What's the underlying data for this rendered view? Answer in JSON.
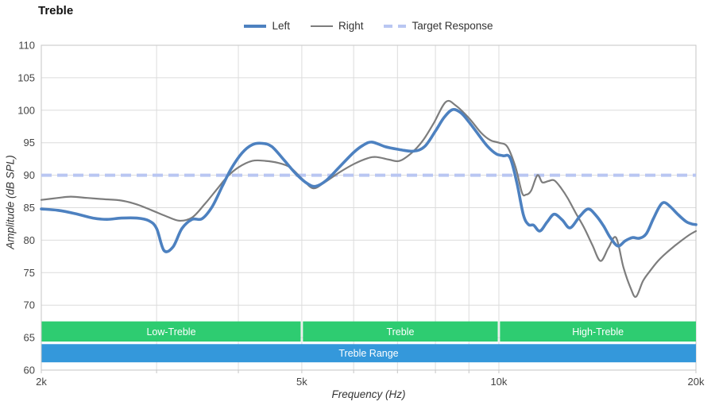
{
  "title": "Treble",
  "colors": {
    "grid": "#dcdcdc",
    "frame": "#c6c6c6",
    "tick_text": "#444444",
    "title_text": "#111111",
    "left_line": "#4d81c0",
    "right_line": "#7d7d7d",
    "target_line": "#b9c6f2",
    "section_band": "#2ecc71",
    "range_band": "#3498db",
    "band_text": "#ffffff"
  },
  "legend": [
    {
      "label": "Left",
      "color": "#4d81c0",
      "style": "solid",
      "thickness": 4
    },
    {
      "label": "Right",
      "color": "#7d7d7d",
      "style": "solid",
      "thickness": 2
    },
    {
      "label": "Target Response",
      "color": "#b9c6f2",
      "style": "dashed",
      "thickness": 4
    }
  ],
  "chart_data": {
    "type": "line",
    "title": "Treble",
    "xlabel": "Frequency (Hz)",
    "ylabel": "Amplitude (dB SPL)",
    "x_scale": "log",
    "xlim": [
      2000,
      20000
    ],
    "ylim": [
      60,
      110
    ],
    "grid": true,
    "legend_position": "top",
    "y_ticks": [
      60,
      65,
      70,
      75,
      80,
      85,
      90,
      95,
      100,
      105,
      110
    ],
    "x_ticks": [
      {
        "f": 2000,
        "label": "2k"
      },
      {
        "f": 5000,
        "label": "5k"
      },
      {
        "f": 10000,
        "label": "10k"
      },
      {
        "f": 20000,
        "label": "20k"
      }
    ],
    "x_gridlines": [
      3000,
      4000,
      5000,
      6000,
      7000,
      8000,
      9000,
      10000
    ],
    "tick_marks": [
      2000,
      3000,
      4000,
      5000,
      6000,
      7000,
      8000,
      9000,
      10000,
      20000
    ],
    "target_response": {
      "value": 90,
      "label": "Target Response"
    },
    "series": [
      {
        "name": "Left",
        "color": "#4d81c0",
        "width": 3.6,
        "points": [
          [
            2000,
            84.8
          ],
          [
            2120,
            84.6
          ],
          [
            2250,
            84.1
          ],
          [
            2400,
            83.4
          ],
          [
            2520,
            83.2
          ],
          [
            2650,
            83.4
          ],
          [
            2800,
            83.4
          ],
          [
            2920,
            83.0
          ],
          [
            3000,
            81.8
          ],
          [
            3080,
            78.4
          ],
          [
            3180,
            79.0
          ],
          [
            3280,
            81.8
          ],
          [
            3400,
            83.2
          ],
          [
            3520,
            83.3
          ],
          [
            3650,
            85.2
          ],
          [
            3780,
            88.3
          ],
          [
            3900,
            91.0
          ],
          [
            4050,
            93.4
          ],
          [
            4200,
            94.7
          ],
          [
            4350,
            94.9
          ],
          [
            4500,
            94.4
          ],
          [
            4700,
            92.3
          ],
          [
            4900,
            90.2
          ],
          [
            5100,
            88.7
          ],
          [
            5250,
            88.3
          ],
          [
            5450,
            89.2
          ],
          [
            5700,
            91.2
          ],
          [
            6000,
            93.5
          ],
          [
            6200,
            94.6
          ],
          [
            6400,
            95.1
          ],
          [
            6700,
            94.4
          ],
          [
            7000,
            94.0
          ],
          [
            7400,
            93.7
          ],
          [
            7700,
            94.4
          ],
          [
            8000,
            96.8
          ],
          [
            8250,
            98.9
          ],
          [
            8500,
            100.1
          ],
          [
            8750,
            99.6
          ],
          [
            9000,
            98.2
          ],
          [
            9300,
            96.3
          ],
          [
            9600,
            94.5
          ],
          [
            9900,
            93.3
          ],
          [
            10150,
            93.0
          ],
          [
            10400,
            92.7
          ],
          [
            10650,
            88.9
          ],
          [
            10900,
            83.9
          ],
          [
            11100,
            82.4
          ],
          [
            11300,
            82.3
          ],
          [
            11550,
            81.4
          ],
          [
            11850,
            82.8
          ],
          [
            12150,
            84.0
          ],
          [
            12500,
            83.1
          ],
          [
            12850,
            81.9
          ],
          [
            13300,
            83.7
          ],
          [
            13700,
            84.8
          ],
          [
            14100,
            83.7
          ],
          [
            14450,
            82.2
          ],
          [
            14800,
            80.4
          ],
          [
            15200,
            79.1
          ],
          [
            15600,
            79.9
          ],
          [
            16000,
            80.4
          ],
          [
            16400,
            80.3
          ],
          [
            16800,
            81.0
          ],
          [
            17200,
            83.2
          ],
          [
            17600,
            85.2
          ],
          [
            17900,
            85.8
          ],
          [
            18300,
            85.1
          ],
          [
            18800,
            83.9
          ],
          [
            19300,
            82.9
          ],
          [
            19700,
            82.5
          ],
          [
            20000,
            82.4
          ]
        ]
      },
      {
        "name": "Right",
        "color": "#7d7d7d",
        "width": 2.2,
        "points": [
          [
            2000,
            86.2
          ],
          [
            2120,
            86.5
          ],
          [
            2220,
            86.7
          ],
          [
            2350,
            86.5
          ],
          [
            2500,
            86.3
          ],
          [
            2650,
            86.1
          ],
          [
            2800,
            85.5
          ],
          [
            2950,
            84.6
          ],
          [
            3100,
            83.7
          ],
          [
            3250,
            83.0
          ],
          [
            3400,
            83.5
          ],
          [
            3550,
            85.5
          ],
          [
            3700,
            87.7
          ],
          [
            3850,
            89.8
          ],
          [
            4000,
            91.2
          ],
          [
            4200,
            92.2
          ],
          [
            4400,
            92.2
          ],
          [
            4600,
            91.9
          ],
          [
            4800,
            91.2
          ],
          [
            5000,
            89.5
          ],
          [
            5200,
            88.0
          ],
          [
            5400,
            88.8
          ],
          [
            5700,
            90.4
          ],
          [
            6000,
            91.7
          ],
          [
            6300,
            92.6
          ],
          [
            6500,
            92.8
          ],
          [
            6800,
            92.4
          ],
          [
            7050,
            92.2
          ],
          [
            7350,
            93.4
          ],
          [
            7650,
            95.3
          ],
          [
            7950,
            98.0
          ],
          [
            8300,
            101.3
          ],
          [
            8600,
            100.7
          ],
          [
            9000,
            98.8
          ],
          [
            9400,
            96.5
          ],
          [
            9700,
            95.4
          ],
          [
            10000,
            95.0
          ],
          [
            10300,
            94.4
          ],
          [
            10600,
            91.3
          ],
          [
            10850,
            87.3
          ],
          [
            11000,
            87.0
          ],
          [
            11200,
            87.6
          ],
          [
            11450,
            90.0
          ],
          [
            11650,
            88.9
          ],
          [
            11900,
            89.1
          ],
          [
            12150,
            89.2
          ],
          [
            12450,
            88.0
          ],
          [
            12750,
            86.4
          ],
          [
            13100,
            84.2
          ],
          [
            13500,
            81.9
          ],
          [
            13900,
            79.2
          ],
          [
            14300,
            76.8
          ],
          [
            14700,
            78.8
          ],
          [
            15100,
            80.4
          ],
          [
            15500,
            75.8
          ],
          [
            15900,
            72.6
          ],
          [
            16200,
            71.3
          ],
          [
            16600,
            73.7
          ],
          [
            17000,
            75.2
          ],
          [
            17500,
            76.8
          ],
          [
            18000,
            78.0
          ],
          [
            18600,
            79.2
          ],
          [
            19100,
            80.1
          ],
          [
            19600,
            80.9
          ],
          [
            20000,
            81.4
          ]
        ]
      }
    ],
    "bands": {
      "treble_sections": [
        {
          "label": "Low-Treble",
          "range": [
            2000,
            5000
          ]
        },
        {
          "label": "Treble",
          "range": [
            5000,
            10000
          ]
        },
        {
          "label": "High-Treble",
          "range": [
            10000,
            20000
          ]
        }
      ],
      "sections_db": [
        64.4,
        67.5
      ],
      "range_band": {
        "label": "Treble Range",
        "range": [
          2000,
          20000
        ],
        "db": [
          61.2,
          64.0
        ]
      }
    }
  }
}
